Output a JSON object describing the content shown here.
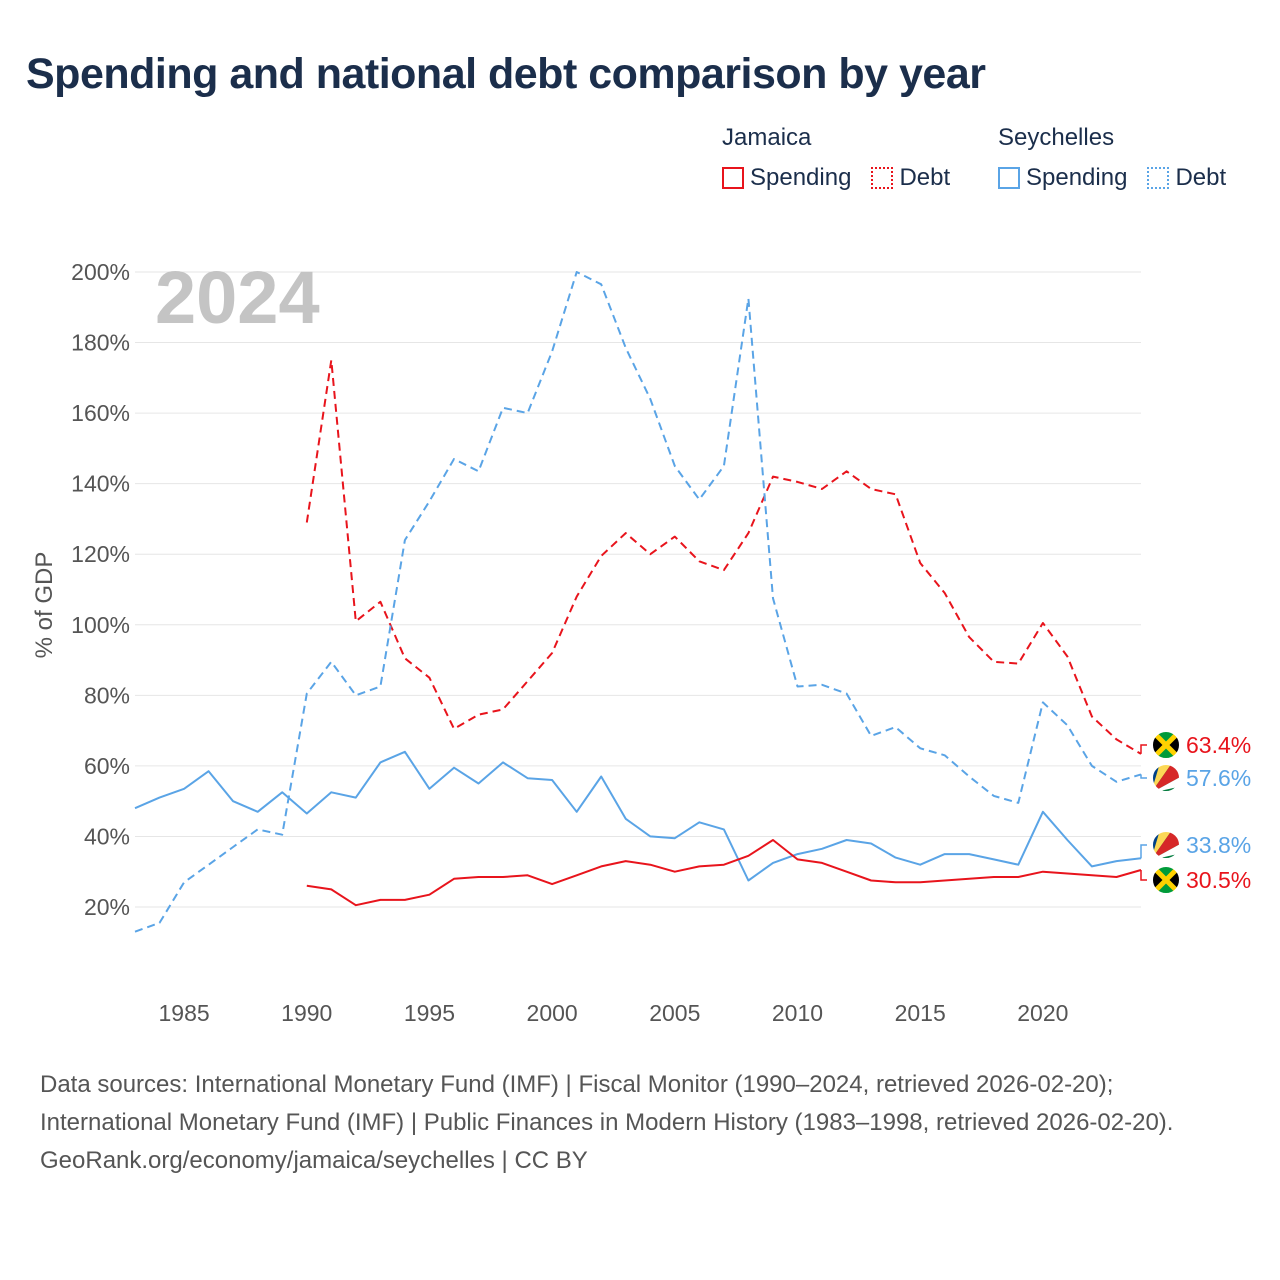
{
  "title": "Spending and national debt comparison by year",
  "legend": {
    "groups": [
      {
        "name": "Jamaica",
        "color": "#e8141c",
        "items": [
          "Spending",
          "Debt"
        ]
      },
      {
        "name": "Seychelles",
        "color": "#5aa4e6",
        "items": [
          "Spending",
          "Debt"
        ]
      }
    ]
  },
  "chart_data": {
    "type": "line",
    "title": "Spending and national debt comparison by year",
    "year_label": "2024",
    "xlabel": "",
    "ylabel": "% of GDP",
    "xlim": [
      1983,
      2024
    ],
    "ylim": [
      0,
      205
    ],
    "x_ticks": [
      1985,
      1990,
      1995,
      2000,
      2005,
      2010,
      2015,
      2020
    ],
    "y_ticks": [
      20,
      40,
      60,
      80,
      100,
      120,
      140,
      160,
      180,
      200
    ],
    "y_tick_labels": [
      "20%",
      "40%",
      "60%",
      "80%",
      "100%",
      "120%",
      "140%",
      "160%",
      "180%",
      "200%"
    ],
    "series": [
      {
        "name": "Jamaica Debt",
        "country": "Jamaica",
        "metric": "Debt",
        "color": "#e8141c",
        "dashed": true,
        "x": [
          1990,
          1991,
          1992,
          1993,
          1994,
          1995,
          1996,
          1997,
          1998,
          1999,
          2000,
          2001,
          2002,
          2003,
          2004,
          2005,
          2006,
          2007,
          2008,
          2009,
          2010,
          2011,
          2012,
          2013,
          2014,
          2015,
          2016,
          2017,
          2018,
          2019,
          2020,
          2021,
          2022,
          2023,
          2024
        ],
        "values": [
          129,
          175,
          101,
          106.5,
          90.5,
          85,
          70.5,
          74.5,
          76,
          84,
          92,
          108,
          119.5,
          126,
          120,
          125,
          118,
          115.5,
          126,
          142,
          140.5,
          138.5,
          143.5,
          138.5,
          137,
          117.5,
          109,
          96.5,
          89.5,
          89,
          100.5,
          91,
          74,
          67.5,
          63.4
        ],
        "end_label": "63.4%"
      },
      {
        "name": "Seychelles Debt",
        "country": "Seychelles",
        "metric": "Debt",
        "color": "#5aa4e6",
        "dashed": true,
        "x": [
          1983,
          1984,
          1985,
          1986,
          1987,
          1988,
          1989,
          1990,
          1991,
          1992,
          1993,
          1994,
          1995,
          1996,
          1997,
          1998,
          1999,
          2000,
          2001,
          2002,
          2003,
          2004,
          2005,
          2006,
          2007,
          2008,
          2009,
          2010,
          2011,
          2012,
          2013,
          2014,
          2015,
          2016,
          2017,
          2018,
          2019,
          2020,
          2021,
          2022,
          2023,
          2024
        ],
        "values": [
          13,
          15.5,
          27,
          32,
          37,
          42,
          40.5,
          80.5,
          89.5,
          80,
          82.5,
          124,
          135,
          147,
          143.5,
          161.5,
          160,
          177.5,
          200,
          196.5,
          178.5,
          164,
          145,
          135.5,
          145,
          192.5,
          107.5,
          82.5,
          83,
          80.5,
          68.5,
          71,
          65,
          63,
          57,
          51.5,
          49.5,
          78,
          71.5,
          60,
          55.5,
          57.6
        ],
        "end_label": "57.6%"
      },
      {
        "name": "Seychelles Spending",
        "country": "Seychelles",
        "metric": "Spending",
        "color": "#5aa4e6",
        "dashed": false,
        "x": [
          1983,
          1984,
          1985,
          1986,
          1987,
          1988,
          1989,
          1990,
          1991,
          1992,
          1993,
          1994,
          1995,
          1996,
          1997,
          1998,
          1999,
          2000,
          2001,
          2002,
          2003,
          2004,
          2005,
          2006,
          2007,
          2008,
          2009,
          2010,
          2011,
          2012,
          2013,
          2014,
          2015,
          2016,
          2017,
          2018,
          2019,
          2020,
          2021,
          2022,
          2023,
          2024
        ],
        "values": [
          48,
          51,
          53.5,
          58.5,
          50,
          47,
          52.5,
          46.5,
          52.5,
          51,
          61,
          64,
          53.5,
          59.5,
          55,
          61,
          56.5,
          56,
          47,
          57,
          45,
          40,
          39.5,
          44,
          42,
          27.5,
          32.5,
          35,
          36.5,
          39,
          38,
          34,
          32,
          35,
          35,
          33.5,
          32,
          47,
          39,
          31.5,
          33,
          33.8
        ],
        "end_label": "33.8%"
      },
      {
        "name": "Jamaica Spending",
        "country": "Jamaica",
        "metric": "Spending",
        "color": "#e8141c",
        "dashed": false,
        "x": [
          1990,
          1991,
          1992,
          1993,
          1994,
          1995,
          1996,
          1997,
          1998,
          1999,
          2000,
          2001,
          2002,
          2003,
          2004,
          2005,
          2006,
          2007,
          2008,
          2009,
          2010,
          2011,
          2012,
          2013,
          2014,
          2015,
          2016,
          2017,
          2018,
          2019,
          2020,
          2021,
          2022,
          2023,
          2024
        ],
        "values": [
          26,
          25,
          20.5,
          22,
          22,
          23.5,
          28,
          28.5,
          28.5,
          29,
          26.5,
          29,
          31.5,
          33,
          32,
          30,
          31.5,
          32,
          34.5,
          39,
          33.5,
          32.5,
          30,
          27.5,
          27,
          27,
          27.5,
          28,
          28.5,
          28.5,
          30,
          29.5,
          29,
          28.5,
          30.5
        ],
        "end_label": "30.5%"
      }
    ]
  },
  "sources": {
    "line1": "Data sources: International Monetary Fund (IMF) | Fiscal Monitor (1990–2024, retrieved 2026-02-20); International Monetary Fund (IMF) | Public Finances in Modern History (1983–1998, retrieved 2026-02-20).",
    "site": "GeoRank.org/economy/jamaica/seychelles | CC BY"
  }
}
